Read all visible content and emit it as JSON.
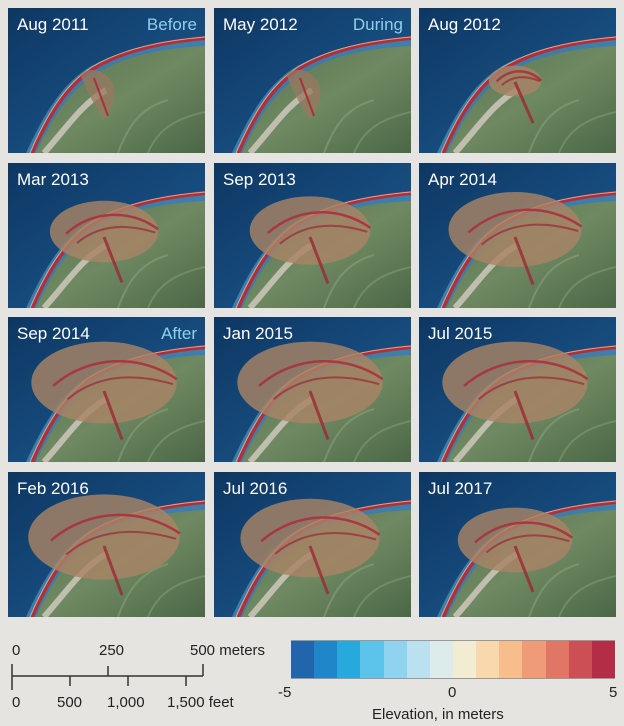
{
  "panels": [
    {
      "date": "Aug 2011",
      "tag": "Before",
      "deposit": 0
    },
    {
      "date": "May 2012",
      "tag": "During",
      "deposit": 0
    },
    {
      "date": "Aug 2012",
      "tag": "",
      "deposit": 0.1
    },
    {
      "date": "Mar 2013",
      "tag": "",
      "deposit": 0.55
    },
    {
      "date": "Sep 2013",
      "tag": "",
      "deposit": 0.65
    },
    {
      "date": "Apr 2014",
      "tag": "",
      "deposit": 0.75
    },
    {
      "date": "Sep 2014",
      "tag": "After",
      "deposit": 0.85
    },
    {
      "date": "Jan 2015",
      "tag": "",
      "deposit": 0.85
    },
    {
      "date": "Jul 2015",
      "tag": "",
      "deposit": 0.85
    },
    {
      "date": "Feb 2016",
      "tag": "",
      "deposit": 0.9
    },
    {
      "date": "Jul 2016",
      "tag": "",
      "deposit": 0.8
    },
    {
      "date": "Jul 2017",
      "tag": "",
      "deposit": 0.6
    }
  ],
  "scale_bar": {
    "meters_ticks": [
      "0",
      "250",
      "500 meters"
    ],
    "feet_ticks": [
      "0",
      "500",
      "1,000",
      "1,500 feet"
    ]
  },
  "legend": {
    "title": "Elevation, in meters",
    "min_label": "-5",
    "mid_label": "0",
    "max_label": "5",
    "colors": [
      "#2166ac",
      "#1f86c9",
      "#27a9de",
      "#5cc3ea",
      "#8fd3ef",
      "#b9e1f0",
      "#dcecea",
      "#f2ecd2",
      "#f8d8ac",
      "#f7bd8c",
      "#f09b77",
      "#e17665",
      "#cc4f56",
      "#b22d45"
    ]
  }
}
